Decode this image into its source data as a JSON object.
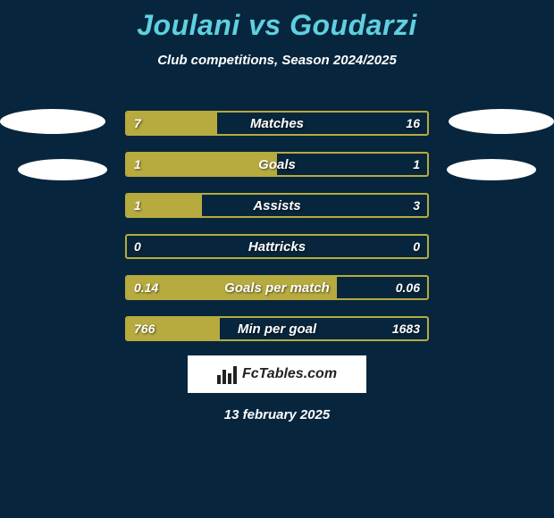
{
  "title": "Joulani vs Goudarzi",
  "subtitle": "Club competitions, Season 2024/2025",
  "date": "13 february 2025",
  "logo_text": "FcTables.com",
  "colors": {
    "background": "#07263d",
    "title": "#5fd0df",
    "bar_border": "#b7aa3f",
    "bar_fill": "#b7aa3f",
    "text": "#ffffff",
    "oval": "#ffffff",
    "logo_bg": "#ffffff",
    "logo_fg": "#222222"
  },
  "bars": [
    {
      "label": "Matches",
      "left": "7",
      "right": "16",
      "fill_pct": 30
    },
    {
      "label": "Goals",
      "left": "1",
      "right": "1",
      "fill_pct": 50
    },
    {
      "label": "Assists",
      "left": "1",
      "right": "3",
      "fill_pct": 25
    },
    {
      "label": "Hattricks",
      "left": "0",
      "right": "0",
      "fill_pct": 0
    },
    {
      "label": "Goals per match",
      "left": "0.14",
      "right": "0.06",
      "fill_pct": 70
    },
    {
      "label": "Min per goal",
      "left": "766",
      "right": "1683",
      "fill_pct": 31
    }
  ]
}
